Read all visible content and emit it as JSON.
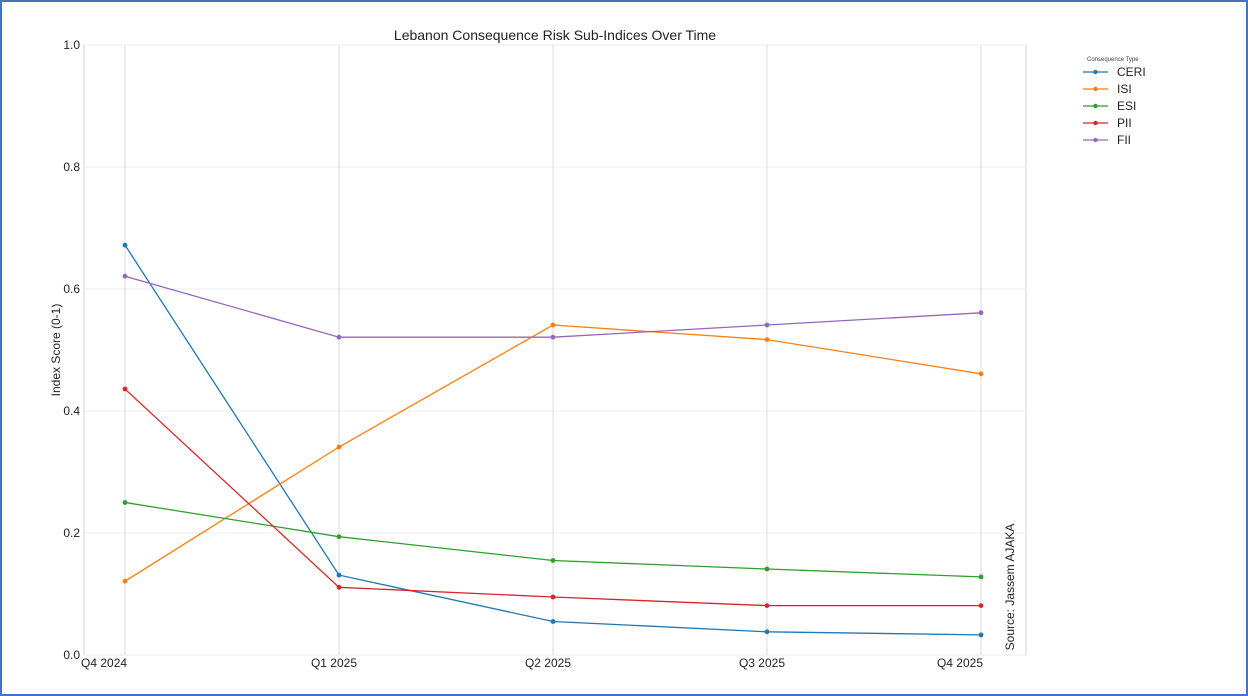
{
  "chart_data": {
    "type": "line",
    "title": "Lebanon Consequence Risk Sub-Indices Over Time",
    "xlabel": "",
    "ylabel": "Index Score (0-1)",
    "ylim": [
      0,
      1
    ],
    "yticks": [
      "0.0",
      "0.2",
      "0.4",
      "0.6",
      "0.8",
      "1.0"
    ],
    "categories": [
      "Q4 2024",
      "Q1 2025",
      "Q2 2025",
      "Q3 2025",
      "Q4 2025"
    ],
    "grid": true,
    "legend": {
      "title": "Consequence Type",
      "placement": "outside-top-right"
    },
    "annotation": "Source: Jassem AJAKA",
    "series": [
      {
        "name": "CERI",
        "color": "#1f77b4",
        "values": [
          0.672,
          0.131,
          0.055,
          0.038,
          0.033
        ]
      },
      {
        "name": "ISI",
        "color": "#ff7f0e",
        "values": [
          0.121,
          0.341,
          0.541,
          0.517,
          0.461
        ]
      },
      {
        "name": "ESI",
        "color": "#2ca02c",
        "values": [
          0.25,
          0.194,
          0.155,
          0.141,
          0.128
        ]
      },
      {
        "name": "PII",
        "color": "#d62728",
        "values": [
          0.436,
          0.111,
          0.095,
          0.081,
          0.081
        ]
      },
      {
        "name": "FII",
        "color": "#9467bd",
        "values": [
          0.621,
          0.521,
          0.521,
          0.541,
          0.561
        ]
      }
    ]
  }
}
